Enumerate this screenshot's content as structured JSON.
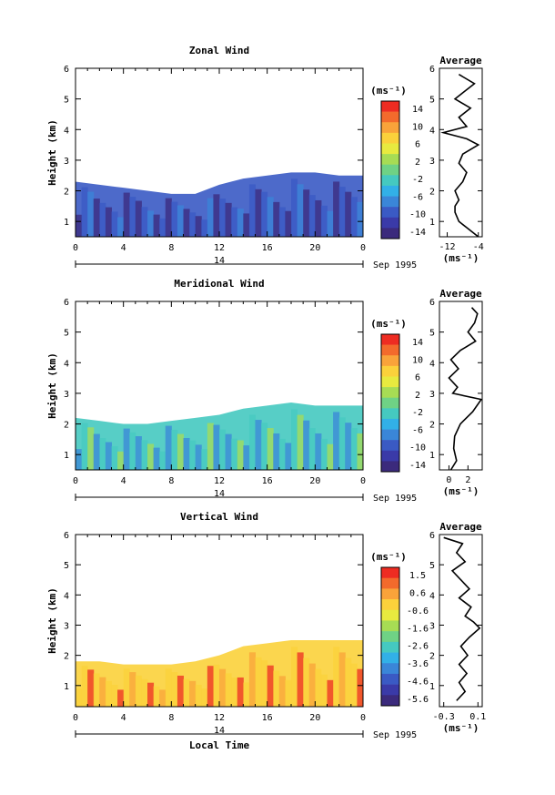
{
  "chart_data": [
    {
      "type": "heatmap",
      "title": "Zonal Wind",
      "ylabel": "Height (km)",
      "xlabel": "",
      "x_ticks": [
        "0",
        "4",
        "8",
        "12",
        "16",
        "20",
        "0"
      ],
      "xlim": [
        0,
        24
      ],
      "y_ticks": [
        "1",
        "2",
        "3",
        "4",
        "5",
        "6"
      ],
      "ylim": [
        0.5,
        6
      ],
      "day_label": "14",
      "date_label": "Sep 1995",
      "colorbar": {
        "unit": "(ms⁻¹)",
        "tick_labels": [
          "14",
          "10",
          "6",
          "2",
          "-2",
          "-6",
          "-10",
          "-14"
        ],
        "levels": [
          14,
          10,
          6,
          2,
          -2,
          -6,
          -10,
          -14
        ]
      },
      "field_top_km": [
        [
          0,
          2.3
        ],
        [
          2,
          2.2
        ],
        [
          4,
          2.1
        ],
        [
          6,
          2.0
        ],
        [
          8,
          1.9
        ],
        [
          10,
          1.9
        ],
        [
          12,
          2.2
        ],
        [
          14,
          2.4
        ],
        [
          16,
          2.5
        ],
        [
          18,
          2.6
        ],
        [
          20,
          2.6
        ],
        [
          22,
          2.5
        ],
        [
          24,
          2.5
        ]
      ],
      "field_base_km": 0.5,
      "field_value_ms": -9,
      "profile": {
        "title": "Average",
        "x_ticks": [
          "-12",
          "-4"
        ],
        "xlabel": "(ms⁻¹)",
        "xlim": [
          -14,
          -3
        ],
        "height_km": [
          0.5,
          0.8,
          1.0,
          1.3,
          1.5,
          1.7,
          2.0,
          2.3,
          2.6,
          2.9,
          3.2,
          3.5,
          3.7,
          3.9,
          4.1,
          4.4,
          4.7,
          5.0,
          5.2,
          5.5,
          5.8
        ],
        "value_ms": [
          -4,
          -7,
          -9,
          -10,
          -10,
          -9,
          -10,
          -8,
          -7,
          -9,
          -8,
          -4,
          -7,
          -13,
          -7,
          -9,
          -6,
          -10,
          -8,
          -5,
          -9
        ]
      }
    },
    {
      "type": "heatmap",
      "title": "Meridional Wind",
      "ylabel": "Height (km)",
      "xlabel": "",
      "x_ticks": [
        "0",
        "4",
        "8",
        "12",
        "16",
        "20",
        "0"
      ],
      "xlim": [
        0,
        24
      ],
      "y_ticks": [
        "1",
        "2",
        "3",
        "4",
        "5",
        "6"
      ],
      "ylim": [
        0.5,
        6
      ],
      "day_label": "14",
      "date_label": "Sep 1995",
      "colorbar": {
        "unit": "(ms⁻¹)",
        "tick_labels": [
          "14",
          "10",
          "6",
          "2",
          "-2",
          "-6",
          "-10",
          "-14"
        ],
        "levels": [
          14,
          10,
          6,
          2,
          -2,
          -6,
          -10,
          -14
        ]
      },
      "field_top_km": [
        [
          0,
          2.2
        ],
        [
          2,
          2.1
        ],
        [
          4,
          2.0
        ],
        [
          6,
          2.0
        ],
        [
          8,
          2.1
        ],
        [
          10,
          2.2
        ],
        [
          12,
          2.3
        ],
        [
          14,
          2.5
        ],
        [
          16,
          2.6
        ],
        [
          18,
          2.7
        ],
        [
          20,
          2.6
        ],
        [
          22,
          2.6
        ],
        [
          24,
          2.6
        ]
      ],
      "field_base_km": 0.5,
      "field_value_ms": -1,
      "profile": {
        "title": "Average",
        "x_ticks": [
          "0",
          "2"
        ],
        "xlabel": "(ms⁻¹)",
        "xlim": [
          -1,
          3.5
        ],
        "height_km": [
          0.5,
          0.8,
          1.2,
          1.6,
          2.0,
          2.4,
          2.8,
          3.0,
          3.2,
          3.5,
          3.8,
          4.1,
          4.4,
          4.7,
          5.0,
          5.3,
          5.6,
          5.8
        ],
        "value_ms": [
          0.2,
          0.8,
          0.5,
          0.6,
          1.2,
          2.5,
          3.4,
          0.4,
          0.9,
          0.0,
          1.0,
          0.2,
          1.2,
          2.8,
          2.0,
          2.7,
          3.0,
          2.4
        ]
      }
    },
    {
      "type": "heatmap",
      "title": "Vertical Wind",
      "ylabel": "Height (km)",
      "xlabel": "Local Time",
      "x_ticks": [
        "0",
        "4",
        "8",
        "12",
        "16",
        "20",
        "0"
      ],
      "xlim": [
        0,
        24
      ],
      "y_ticks": [
        "1",
        "2",
        "3",
        "4",
        "5",
        "6"
      ],
      "ylim": [
        0.3,
        6
      ],
      "day_label": "14",
      "date_label": "Sep 1995",
      "colorbar": {
        "unit": "(ms⁻¹)",
        "tick_labels": [
          "1.5",
          "0.6",
          "-0.6",
          "-1.6",
          "-2.6",
          "-3.6",
          "-4.6",
          "-5.6"
        ],
        "levels": [
          1.5,
          0.6,
          -0.6,
          -1.6,
          -2.6,
          -3.6,
          -4.6,
          -5.6
        ]
      },
      "field_top_km": [
        [
          0,
          1.8
        ],
        [
          2,
          1.8
        ],
        [
          4,
          1.7
        ],
        [
          6,
          1.7
        ],
        [
          8,
          1.7
        ],
        [
          10,
          1.8
        ],
        [
          12,
          2.0
        ],
        [
          14,
          2.3
        ],
        [
          16,
          2.4
        ],
        [
          18,
          2.5
        ],
        [
          20,
          2.5
        ],
        [
          22,
          2.5
        ],
        [
          24,
          2.5
        ]
      ],
      "field_base_km": 0.3,
      "field_value_ms": 0.5,
      "profile": {
        "title": "Average",
        "x_ticks": [
          "-0.3",
          "0.1"
        ],
        "xlabel": "(ms⁻¹)",
        "xlim": [
          -0.35,
          0.15
        ],
        "height_km": [
          0.5,
          0.8,
          1.1,
          1.4,
          1.7,
          2.0,
          2.3,
          2.6,
          2.9,
          3.1,
          3.3,
          3.6,
          3.9,
          4.2,
          4.5,
          4.8,
          5.1,
          5.4,
          5.7,
          5.9
        ],
        "value_ms": [
          -0.15,
          -0.05,
          -0.12,
          -0.03,
          -0.12,
          -0.02,
          -0.1,
          0.0,
          0.12,
          0.05,
          -0.05,
          0.02,
          -0.12,
          0.0,
          -0.1,
          -0.2,
          -0.05,
          -0.15,
          -0.08,
          -0.3
        ]
      }
    }
  ]
}
